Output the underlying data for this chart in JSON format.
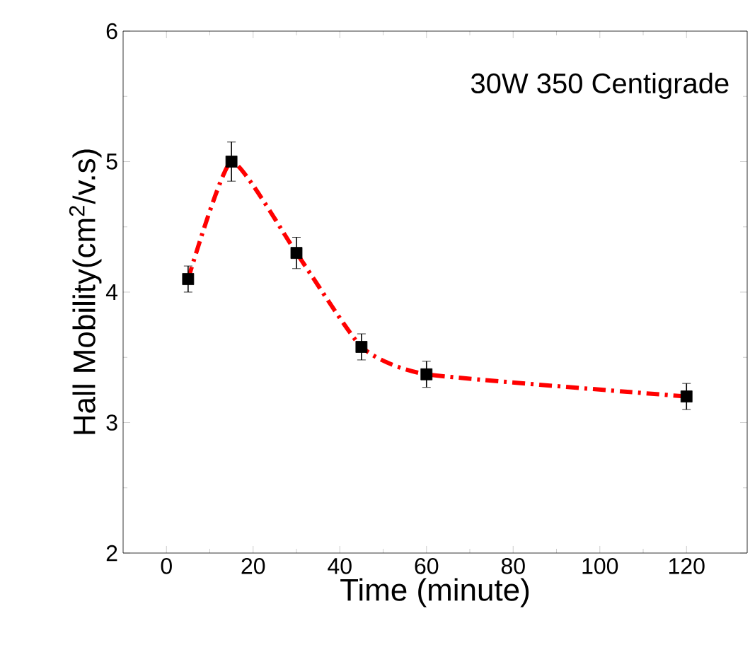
{
  "chart_data": {
    "type": "line",
    "xlabel": "Time (minute)",
    "ylabel": "Hall Mobility(cm$^{2}$/v.s)",
    "annotations": [
      "30W 350 Centigrade"
    ],
    "x": [
      5,
      15,
      30,
      45,
      60,
      120
    ],
    "series": [
      {
        "color": "#ff0000",
        "values": [
          4.1,
          5.0,
          4.3,
          3.58,
          3.37,
          3.2
        ],
        "errors": [
          0.1,
          0.15,
          0.12,
          0.1,
          0.1,
          0.1
        ]
      }
    ],
    "xlim": [
      -10,
      134
    ],
    "ylim": [
      2,
      6
    ],
    "xticks": [
      0,
      20,
      40,
      60,
      80,
      100,
      120
    ],
    "yticks": [
      2,
      3,
      4,
      5,
      6
    ],
    "marker": "square",
    "line_style": "dashed"
  }
}
